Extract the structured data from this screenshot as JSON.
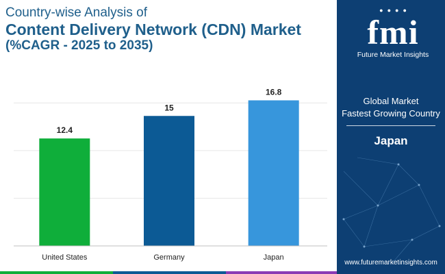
{
  "title": {
    "line1": "Country-wise Analysis of",
    "line2": "Content Delivery Network (CDN) Market",
    "line3": "(%CAGR - 2025 to 2035)"
  },
  "chart_data": {
    "type": "bar",
    "categories": [
      "United States",
      "Germany",
      "Japan"
    ],
    "values": [
      12.4,
      15,
      16.8
    ],
    "data_labels": [
      "12.4",
      "15",
      "16.8"
    ],
    "colors": [
      "#0fae3a",
      "#0c5a95",
      "#3796dc"
    ],
    "ylim": [
      0,
      18
    ],
    "grid": true,
    "legend": "none"
  },
  "sidebar": {
    "logo_mark": "fmi",
    "logo_sub": "Future Market Insights",
    "line1": "Global Market",
    "line2": "Fastest Growing Country",
    "country": "Japan",
    "url": "www.futuremarketinsights.com"
  },
  "footer_colors": [
    "#0fae3a",
    "#0c5a95",
    "#8a3bb5",
    "#0d3f73"
  ]
}
